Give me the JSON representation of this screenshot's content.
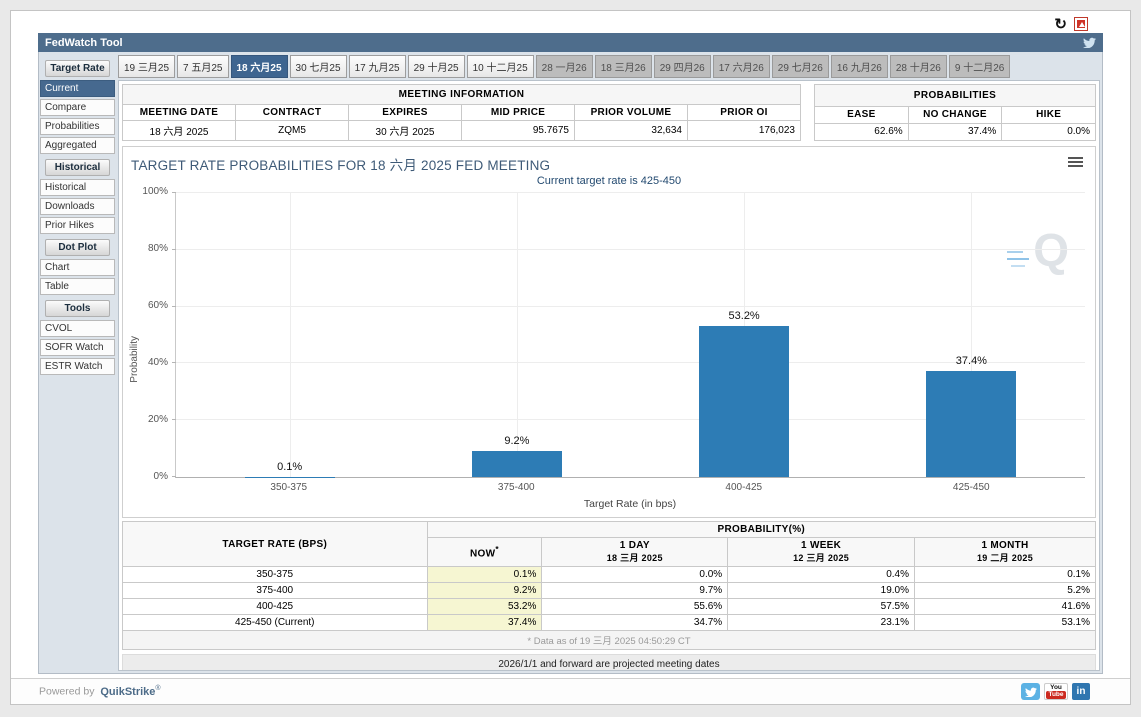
{
  "icons": {
    "refresh_glyph": "↻"
  },
  "header": {
    "title": "FedWatch Tool"
  },
  "sidebar": {
    "sections": [
      {
        "header": "Target Rate",
        "items": [
          {
            "label": "Current",
            "selected": true
          },
          {
            "label": "Compare"
          },
          {
            "label": "Probabilities"
          },
          {
            "label": "Aggregated"
          }
        ]
      },
      {
        "header": "Historical",
        "items": [
          {
            "label": "Historical"
          },
          {
            "label": "Downloads"
          },
          {
            "label": "Prior Hikes"
          }
        ]
      },
      {
        "header": "Dot Plot",
        "items": [
          {
            "label": "Chart"
          },
          {
            "label": "Table"
          }
        ]
      },
      {
        "header": "Tools",
        "items": [
          {
            "label": "CVOL"
          },
          {
            "label": "SOFR Watch"
          },
          {
            "label": "ESTR Watch"
          }
        ]
      }
    ]
  },
  "tabs": [
    {
      "label": "19 三月25",
      "state": "normal"
    },
    {
      "label": "7 五月25",
      "state": "normal"
    },
    {
      "label": "18 六月25",
      "state": "selected"
    },
    {
      "label": "30 七月25",
      "state": "normal"
    },
    {
      "label": "17 九月25",
      "state": "normal"
    },
    {
      "label": "29 十月25",
      "state": "normal"
    },
    {
      "label": "10 十二月25",
      "state": "normal"
    },
    {
      "label": "28 一月26",
      "state": "disabled"
    },
    {
      "label": "18 三月26",
      "state": "disabled"
    },
    {
      "label": "29 四月26",
      "state": "disabled"
    },
    {
      "label": "17 六月26",
      "state": "disabled"
    },
    {
      "label": "29 七月26",
      "state": "disabled"
    },
    {
      "label": "16 九月26",
      "state": "disabled"
    },
    {
      "label": "28 十月26",
      "state": "disabled"
    },
    {
      "label": "9 十二月26",
      "state": "disabled"
    }
  ],
  "meeting_info": {
    "title": "MEETING INFORMATION",
    "headers": [
      "MEETING DATE",
      "CONTRACT",
      "EXPIRES",
      "MID PRICE",
      "PRIOR VOLUME",
      "PRIOR OI"
    ],
    "values": [
      "18 六月 2025",
      "ZQM5",
      "30 六月 2025",
      "95.7675",
      "32,634",
      "176,023"
    ]
  },
  "probabilities_summary": {
    "title": "PROBABILITIES",
    "headers": [
      "EASE",
      "NO CHANGE",
      "HIKE"
    ],
    "values": [
      "62.6%",
      "37.4%",
      "0.0%"
    ]
  },
  "chart_data": {
    "type": "bar",
    "title": "TARGET RATE PROBABILITIES FOR 18 六月 2025 FED MEETING",
    "subtitle": "Current target rate is 425-450",
    "categories": [
      "350-375",
      "375-400",
      "400-425",
      "425-450"
    ],
    "values": [
      0.1,
      9.2,
      53.2,
      37.4
    ],
    "value_labels": [
      "0.1%",
      "9.2%",
      "53.2%",
      "37.4%"
    ],
    "xlabel": "Target Rate (in bps)",
    "ylabel": "Probability",
    "ylim": [
      0,
      100
    ],
    "yticks": [
      "0%",
      "20%",
      "40%",
      "60%",
      "80%",
      "100%"
    ],
    "bar_color": "#2d7cb5",
    "grid": true,
    "legend": "none",
    "watermark": "Q"
  },
  "bottom_table": {
    "col1_header": "TARGET RATE (BPS)",
    "group_header": "PROBABILITY(%)",
    "sub_headers": [
      {
        "label": "NOW",
        "sup": "*"
      },
      {
        "label": "1 DAY",
        "date": "18 三月 2025"
      },
      {
        "label": "1 WEEK",
        "date": "12 三月 2025"
      },
      {
        "label": "1 MONTH",
        "date": "19 二月 2025"
      }
    ],
    "rows": [
      {
        "rate": "350-375",
        "values": [
          "0.1%",
          "0.0%",
          "0.4%",
          "0.1%"
        ]
      },
      {
        "rate": "375-400",
        "values": [
          "9.2%",
          "9.7%",
          "19.0%",
          "5.2%"
        ]
      },
      {
        "rate": "400-425",
        "values": [
          "53.2%",
          "55.6%",
          "57.5%",
          "41.6%"
        ]
      },
      {
        "rate": "425-450 (Current)",
        "values": [
          "37.4%",
          "34.7%",
          "23.1%",
          "53.1%"
        ]
      }
    ],
    "footnote": "* Data as of 19 三月 2025 04:50:29 CT"
  },
  "projected_note": "2026/1/1 and forward are projected meeting dates",
  "footer": {
    "powered_by": "Powered by",
    "brand": "QuikStrike",
    "registered": "®",
    "social_icons": [
      {
        "name": "twitter"
      },
      {
        "name": "youtube",
        "label_top": "You",
        "label_bottom": "Tube"
      },
      {
        "name": "linkedin",
        "label": "in"
      }
    ]
  }
}
